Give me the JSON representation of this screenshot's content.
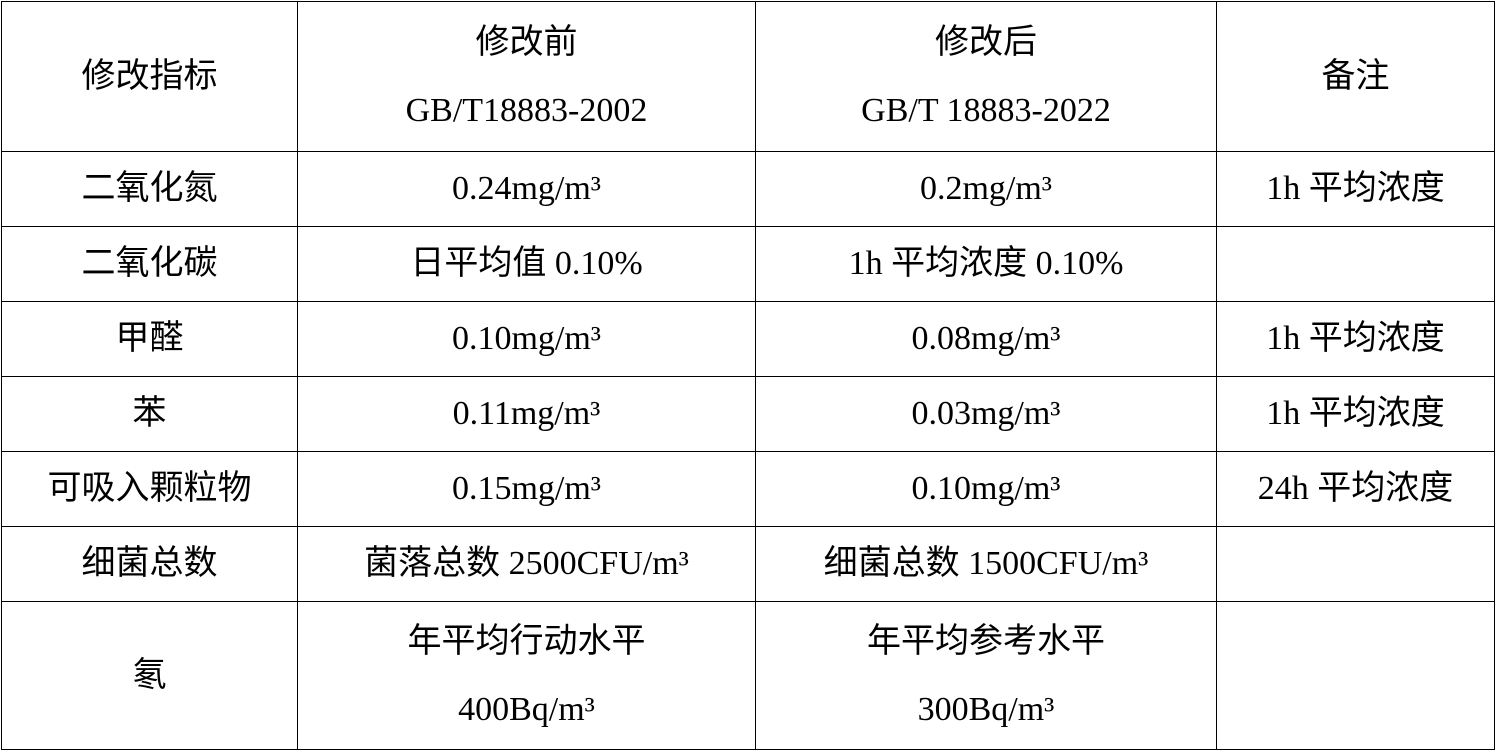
{
  "header": {
    "indicator": "修改指标",
    "before_title": "修改前",
    "before_std": "GB/T18883-2002",
    "after_title": "修改后",
    "after_std": "GB/T 18883-2022",
    "note": "备注"
  },
  "rows": [
    {
      "indicator": "二氧化氮",
      "before": "0.24mg/m³",
      "after": "0.2mg/m³",
      "note": "1h 平均浓度"
    },
    {
      "indicator": "二氧化碳",
      "before": "日平均值 0.10%",
      "after": "1h 平均浓度 0.10%",
      "note": ""
    },
    {
      "indicator": "甲醛",
      "before": "0.10mg/m³",
      "after": "0.08mg/m³",
      "note": "1h 平均浓度"
    },
    {
      "indicator": "苯",
      "before": "0.11mg/m³",
      "after": "0.03mg/m³",
      "note": "1h 平均浓度"
    },
    {
      "indicator": "可吸入颗粒物",
      "before": "0.15mg/m³",
      "after": "0.10mg/m³",
      "note": "24h 平均浓度"
    },
    {
      "indicator": "细菌总数",
      "before": "菌落总数 2500CFU/m³",
      "after": "细菌总数 1500CFU/m³",
      "note": ""
    },
    {
      "indicator": "氡",
      "before": "年平均行动水平",
      "before_value": "400Bq/m³",
      "after": "年平均参考水平",
      "after_value": "300Bq/m³",
      "note": ""
    }
  ]
}
